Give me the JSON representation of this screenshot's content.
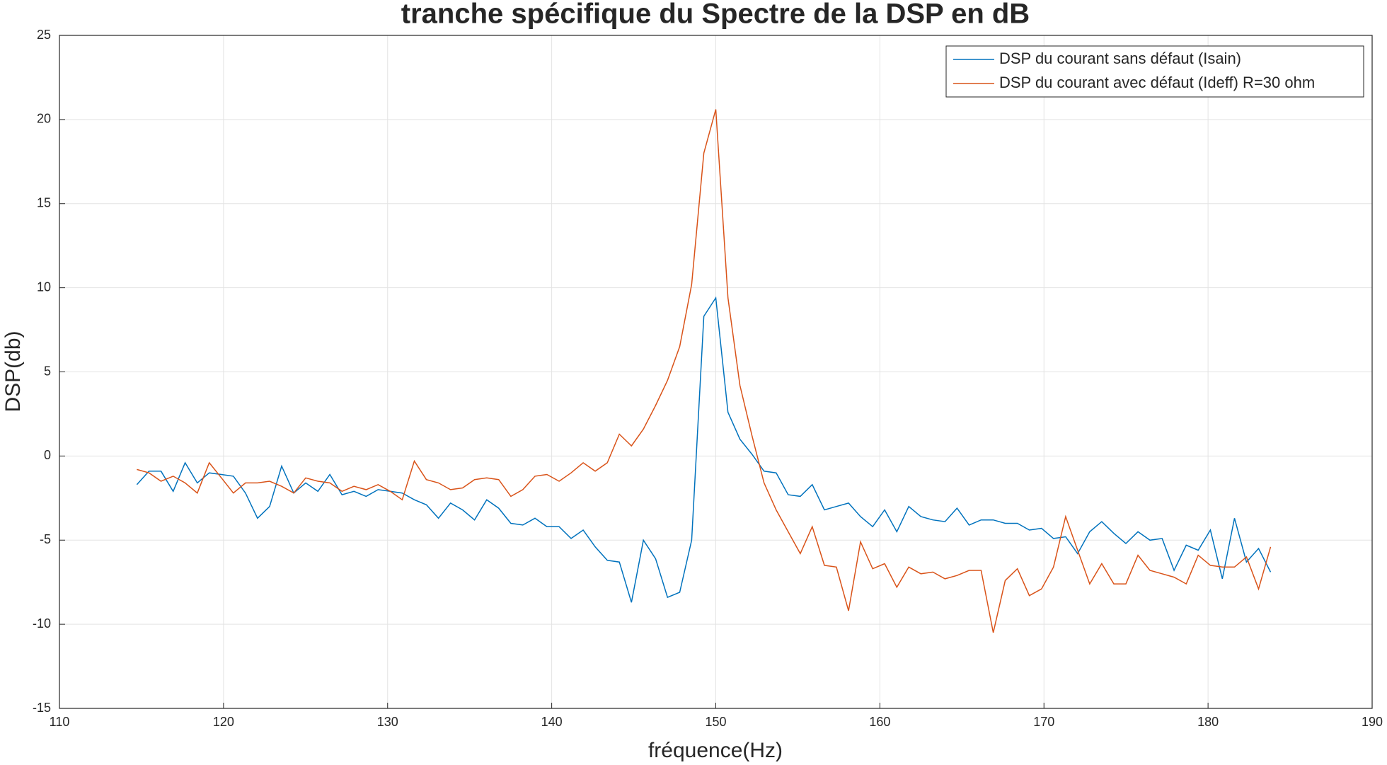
{
  "chart_data": {
    "type": "line",
    "title": "tranche spécifique du Spectre de la DSP en dB",
    "xlabel": "fréquence(Hz)",
    "ylabel": "DSP(db)",
    "x": [
      114.72,
      115.46,
      116.19,
      116.93,
      117.66,
      118.4,
      119.13,
      119.87,
      120.6,
      121.34,
      122.07,
      122.81,
      123.54,
      124.28,
      125.01,
      125.75,
      126.48,
      127.22,
      127.95,
      128.69,
      129.42,
      130.16,
      130.89,
      131.63,
      132.36,
      133.1,
      133.83,
      134.57,
      135.3,
      136.04,
      136.77,
      137.51,
      138.24,
      138.98,
      139.71,
      140.45,
      141.18,
      141.92,
      142.65,
      143.39,
      144.12,
      144.86,
      145.59,
      146.33,
      147.06,
      147.8,
      148.53,
      149.27,
      150.0,
      150.74,
      151.47,
      152.21,
      152.94,
      153.68,
      154.41,
      155.15,
      155.88,
      156.62,
      157.35,
      158.09,
      158.82,
      159.56,
      160.29,
      161.03,
      161.76,
      162.5,
      163.23,
      163.97,
      164.7,
      165.44,
      166.17,
      166.91,
      167.64,
      168.38,
      169.11,
      169.85,
      170.58,
      171.32,
      172.05,
      172.79,
      173.52,
      174.26,
      174.99,
      175.73,
      176.46,
      177.2,
      177.93,
      178.67,
      179.4,
      180.14,
      180.87,
      181.61,
      182.34,
      183.08,
      183.81
    ],
    "series": [
      {
        "name": "DSP du courant sans défaut (Isain)",
        "color": "#0072BD",
        "values": [
          -1.7,
          -0.9,
          -0.9,
          -2.1,
          -0.4,
          -1.6,
          -1.0,
          -1.1,
          -1.2,
          -2.2,
          -3.7,
          -3.0,
          -0.6,
          -2.2,
          -1.6,
          -2.1,
          -1.1,
          -2.3,
          -2.1,
          -2.4,
          -2.0,
          -2.1,
          -2.2,
          -2.6,
          -2.9,
          -3.7,
          -2.8,
          -3.2,
          -3.8,
          -2.6,
          -3.1,
          -4.0,
          -4.1,
          -3.7,
          -4.2,
          -4.2,
          -4.9,
          -4.4,
          -5.4,
          -6.2,
          -6.3,
          -8.7,
          -5.0,
          -6.1,
          -8.4,
          -8.1,
          -5.0,
          8.3,
          9.4,
          2.6,
          1.0,
          0.1,
          -0.9,
          -1.0,
          -2.3,
          -2.4,
          -1.7,
          -3.2,
          -3.0,
          -2.8,
          -3.6,
          -4.2,
          -3.2,
          -4.5,
          -3.0,
          -3.6,
          -3.8,
          -3.9,
          -3.1,
          -4.1,
          -3.8,
          -3.8,
          -4.0,
          -4.0,
          -4.4,
          -4.3,
          -4.9,
          -4.8,
          -5.8,
          -4.5,
          -3.9,
          -4.6,
          -5.2,
          -4.5,
          -5.0,
          -4.9,
          -6.8,
          -5.3,
          -5.6,
          -4.4,
          -7.3,
          -3.7,
          -6.3,
          -5.5,
          -6.9
        ]
      },
      {
        "name": "DSP du courant avec défaut (Ideff) R=30 ohm",
        "color": "#D95319",
        "values": [
          -0.8,
          -1.0,
          -1.5,
          -1.2,
          -1.6,
          -2.2,
          -0.4,
          -1.3,
          -2.2,
          -1.6,
          -1.6,
          -1.5,
          -1.8,
          -2.2,
          -1.3,
          -1.5,
          -1.6,
          -2.1,
          -1.8,
          -2.0,
          -1.7,
          -2.1,
          -2.6,
          -0.3,
          -1.4,
          -1.6,
          -2.0,
          -1.9,
          -1.4,
          -1.3,
          -1.4,
          -2.4,
          -2.0,
          -1.2,
          -1.1,
          -1.5,
          -1.0,
          -0.4,
          -0.9,
          -0.4,
          1.3,
          0.6,
          1.6,
          3.0,
          4.5,
          6.5,
          10.2,
          18.0,
          20.6,
          9.4,
          4.2,
          1.2,
          -1.6,
          -3.2,
          -4.5,
          -5.8,
          -4.2,
          -6.5,
          -6.6,
          -9.2,
          -5.1,
          -6.7,
          -6.4,
          -7.8,
          -6.6,
          -7.0,
          -6.9,
          -7.3,
          -7.1,
          -6.8,
          -6.8,
          -10.5,
          -7.4,
          -6.7,
          -8.3,
          -7.9,
          -6.6,
          -3.6,
          -5.6,
          -7.6,
          -6.4,
          -7.6,
          -7.6,
          -5.9,
          -6.8,
          -7.0,
          -7.2,
          -7.6,
          -5.9,
          -6.5,
          -6.6,
          -6.6,
          -6.0,
          -7.9,
          -5.4
        ]
      }
    ],
    "xlim": [
      110,
      190
    ],
    "xticks": [
      110,
      120,
      130,
      140,
      150,
      160,
      170,
      180,
      190
    ],
    "ylim": [
      -15,
      25
    ],
    "yticks": [
      -15,
      -10,
      -5,
      0,
      5,
      10,
      15,
      20,
      25
    ],
    "grid": true,
    "legend": "northeast"
  }
}
